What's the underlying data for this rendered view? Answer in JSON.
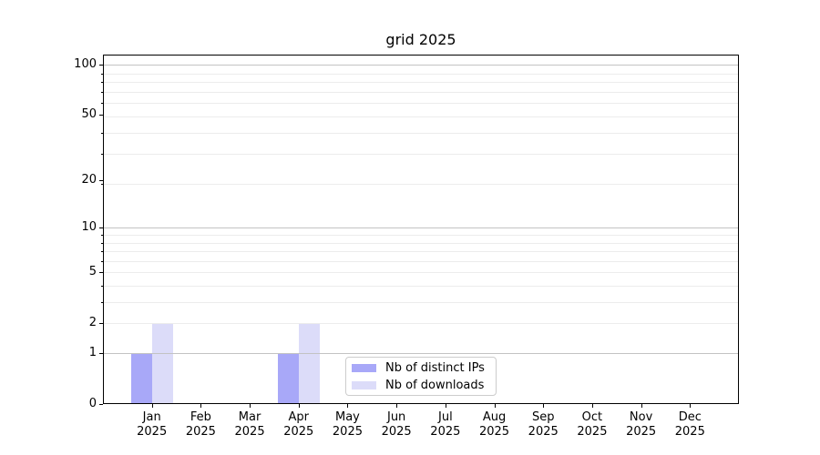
{
  "title": "grid 2025",
  "chart_data": {
    "type": "bar",
    "title": "grid 2025",
    "categories": [
      "Jan",
      "Feb",
      "Mar",
      "Apr",
      "May",
      "Jun",
      "Jul",
      "Aug",
      "Sep",
      "Oct",
      "Nov",
      "Dec"
    ],
    "year_label": "2025",
    "series": [
      {
        "name": "Nb of distinct IPs",
        "color": "#a8a8f8",
        "values": [
          1,
          0,
          0,
          1,
          0,
          0,
          0,
          0,
          0,
          0,
          0,
          0
        ]
      },
      {
        "name": "Nb of downloads",
        "color": "#dcdcf9",
        "values": [
          2,
          0,
          0,
          2,
          0,
          0,
          0,
          0,
          0,
          0,
          0,
          0
        ]
      }
    ],
    "yscale": "log10(value+1)",
    "ylim": [
      0,
      113
    ],
    "yticks": [
      0,
      1,
      2,
      5,
      10,
      20,
      50,
      100
    ],
    "yticks_minor": [
      3,
      4,
      6,
      7,
      8,
      9,
      19,
      29,
      39,
      59,
      69,
      79,
      89
    ],
    "grid": {
      "major_values": [
        1,
        10,
        100
      ],
      "minor_values": [
        2,
        3,
        4,
        5,
        6,
        7,
        8,
        9,
        19,
        29,
        39,
        49,
        59,
        69,
        79,
        89
      ]
    },
    "legend": {
      "position": "lower center",
      "border_color": "#cccccc"
    },
    "colors": {
      "grid_major": "#c3c3c3",
      "grid_minor": "#ececec",
      "spine": "#000000",
      "text": "#000000",
      "background": "#ffffff"
    }
  }
}
